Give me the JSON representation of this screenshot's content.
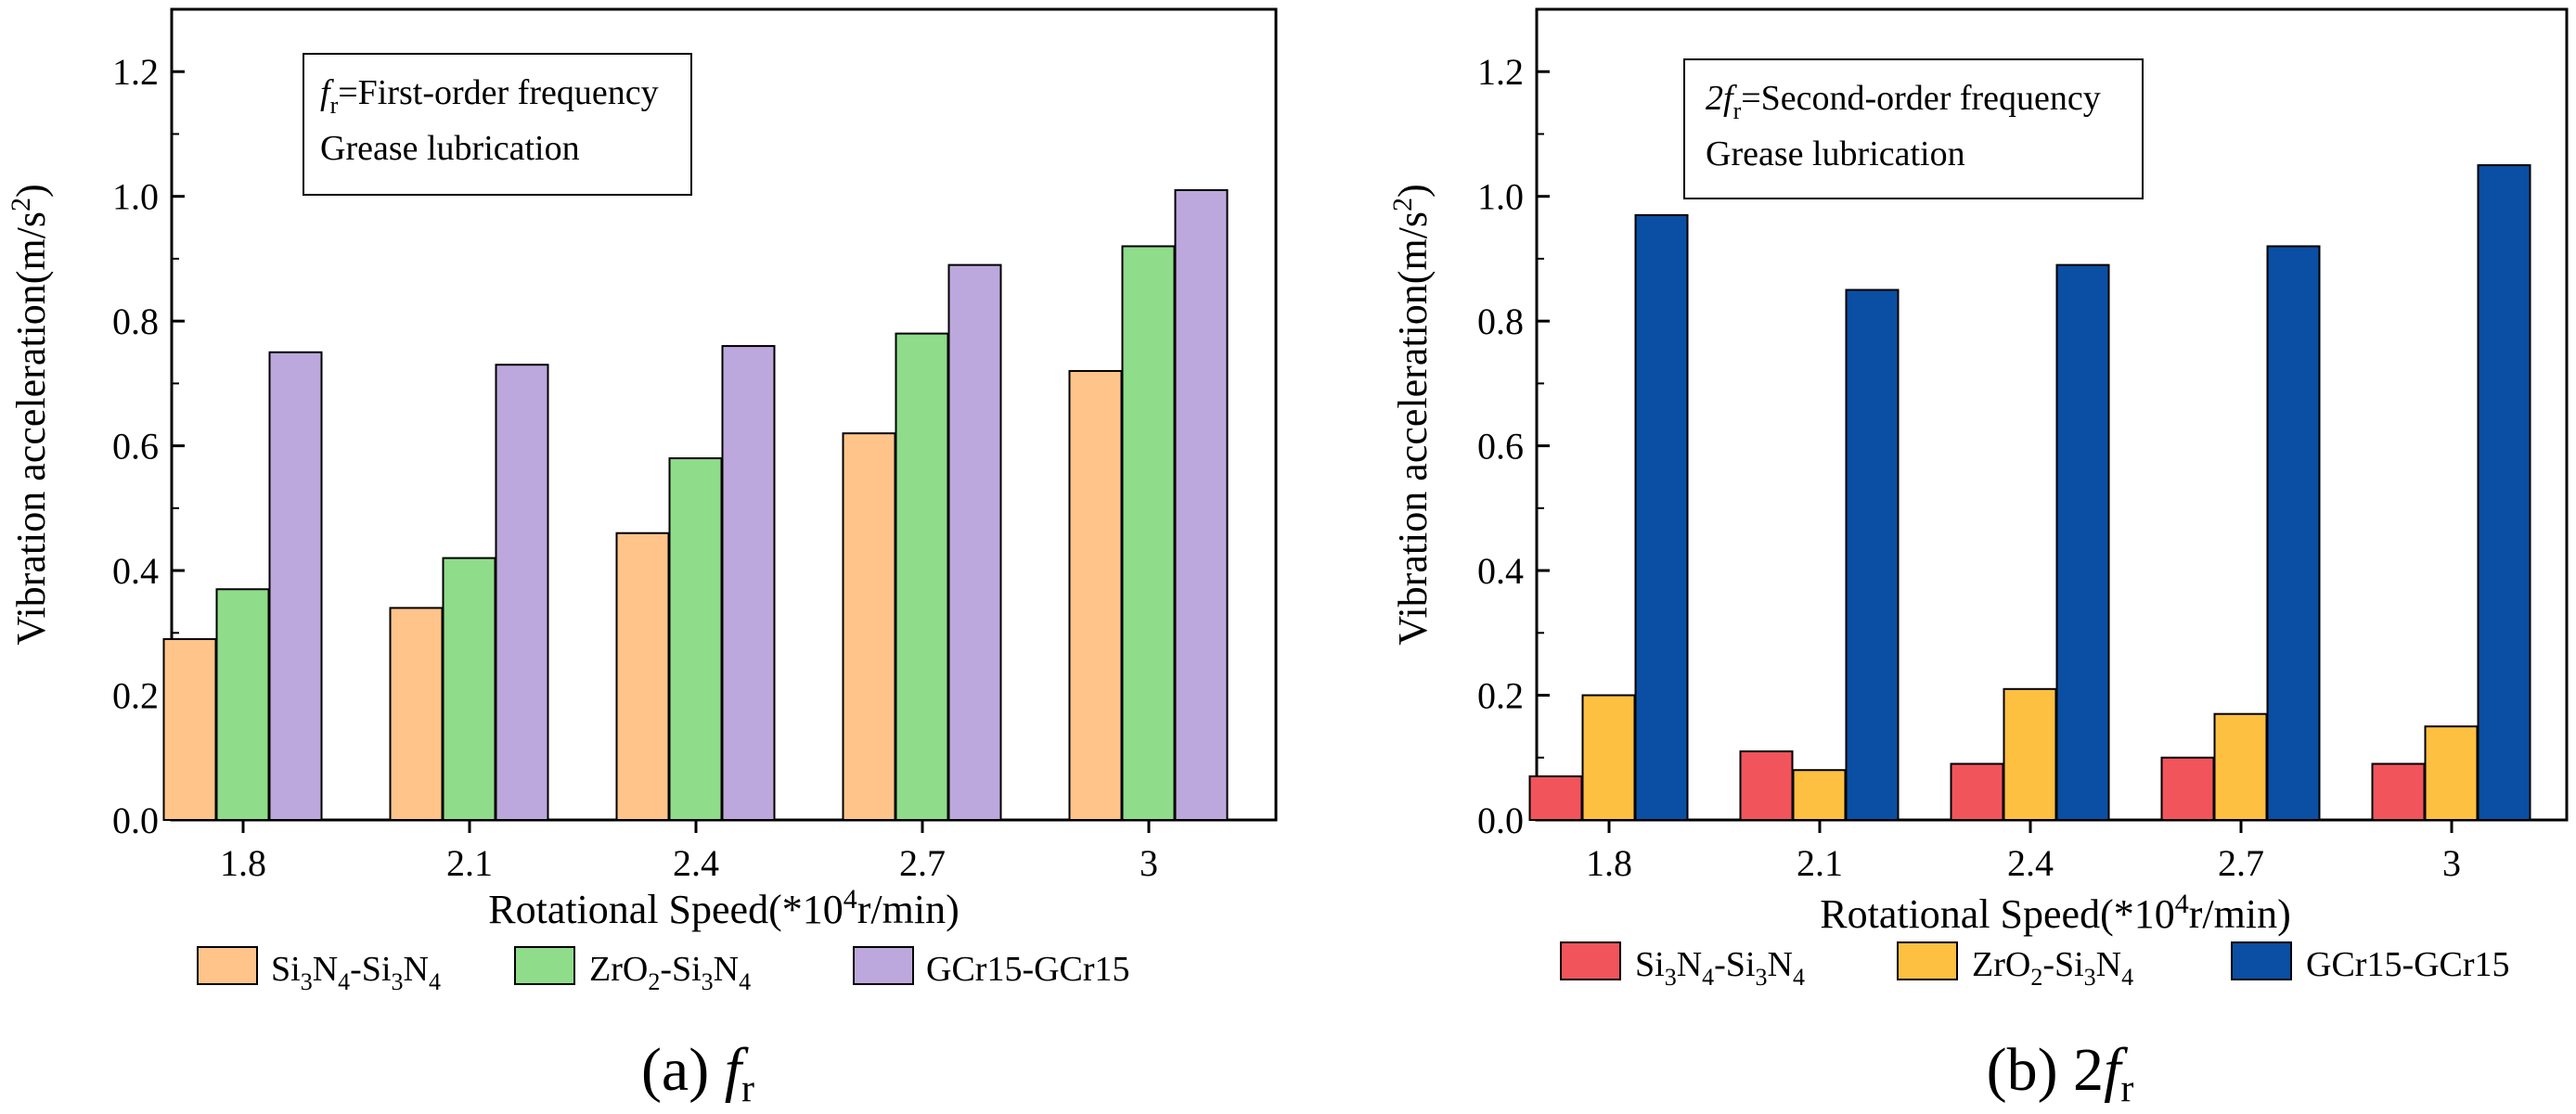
{
  "figure": {
    "panels": [
      {
        "caption": {
          "prefix": "(a) ",
          "main": "f",
          "sub": "r"
        },
        "annotation": {
          "line1": {
            "italic": "f",
            "sub": "r",
            "rest": "=First-order frequency"
          },
          "line2": "Grease lubrication"
        },
        "xlabel": {
          "pre": "Rotational Speed(*10",
          "sup": "4",
          "post": "r/min)"
        },
        "ylabel": {
          "pre": "Vibration acceleration(m/s",
          "sup": "2",
          "post": ")"
        }
      },
      {
        "caption": {
          "prefix": "(b) 2",
          "main": "f",
          "sub": "r"
        },
        "annotation": {
          "line1": {
            "italic": "2f",
            "sub": "r",
            "rest": "=Second-order frequency"
          },
          "line2": "Grease lubrication"
        },
        "xlabel": {
          "pre": "Rotational Speed(*10",
          "sup": "4",
          "post": "r/min)"
        },
        "ylabel": {
          "pre": "Vibration acceleration(m/s",
          "sup": "2",
          "post": ")"
        }
      }
    ]
  },
  "chart_data": [
    {
      "type": "bar",
      "categories": [
        "1.8",
        "2.1",
        "2.4",
        "2.7",
        "3"
      ],
      "series": [
        {
          "name": "Si3N4-Si3N4",
          "values": [
            0.29,
            0.34,
            0.46,
            0.62,
            0.72
          ],
          "color": "#FFC48A"
        },
        {
          "name": "ZrO2-Si3N4",
          "values": [
            0.37,
            0.42,
            0.58,
            0.78,
            0.92
          ],
          "color": "#8FDC8A"
        },
        {
          "name": "GCr15-GCr15",
          "values": [
            0.75,
            0.73,
            0.76,
            0.89,
            1.01
          ],
          "color": "#BCA8DC"
        }
      ],
      "legend_labels": [
        {
          "parts": [
            [
              "Si",
              "n"
            ],
            [
              "3",
              "sub"
            ],
            [
              "N",
              "n"
            ],
            [
              "4",
              "sub"
            ],
            [
              "-Si",
              "n"
            ],
            [
              "3",
              "sub"
            ],
            [
              "N",
              "n"
            ],
            [
              "4",
              "sub"
            ]
          ]
        },
        {
          "parts": [
            [
              "ZrO",
              "n"
            ],
            [
              "2",
              "sub"
            ],
            [
              "-Si",
              "n"
            ],
            [
              "3",
              "sub"
            ],
            [
              "N",
              "n"
            ],
            [
              "4",
              "sub"
            ]
          ]
        },
        {
          "parts": [
            [
              "GCr15-GCr15",
              "n"
            ]
          ]
        }
      ],
      "ylim": [
        0,
        1.3
      ],
      "yticks": [
        "0.0",
        "0.2",
        "0.4",
        "0.6",
        "0.8",
        "1.0",
        "1.2"
      ],
      "legend_position": "bottom"
    },
    {
      "type": "bar",
      "categories": [
        "1.8",
        "2.1",
        "2.4",
        "2.7",
        "3"
      ],
      "series": [
        {
          "name": "Si3N4-Si3N4",
          "values": [
            0.07,
            0.11,
            0.09,
            0.1,
            0.09
          ],
          "color": "#F2545B"
        },
        {
          "name": "ZrO2-Si3N4",
          "values": [
            0.2,
            0.08,
            0.21,
            0.17,
            0.15
          ],
          "color": "#FDC040"
        },
        {
          "name": "GCr15-GCr15",
          "values": [
            0.97,
            0.85,
            0.89,
            0.92,
            1.05
          ],
          "color": "#0A4FA3"
        }
      ],
      "legend_labels": [
        {
          "parts": [
            [
              "Si",
              "n"
            ],
            [
              "3",
              "sub"
            ],
            [
              "N",
              "n"
            ],
            [
              "4",
              "sub"
            ],
            [
              "-Si",
              "n"
            ],
            [
              "3",
              "sub"
            ],
            [
              "N",
              "n"
            ],
            [
              "4",
              "sub"
            ]
          ]
        },
        {
          "parts": [
            [
              "ZrO",
              "n"
            ],
            [
              "2",
              "sub"
            ],
            [
              "-Si",
              "n"
            ],
            [
              "3",
              "sub"
            ],
            [
              "N",
              "n"
            ],
            [
              "4",
              "sub"
            ]
          ]
        },
        {
          "parts": [
            [
              "GCr15-GCr15",
              "n"
            ]
          ]
        }
      ],
      "ylim": [
        0,
        1.3
      ],
      "yticks": [
        "0.0",
        "0.2",
        "0.4",
        "0.6",
        "0.8",
        "1.0",
        "1.2"
      ],
      "legend_position": "bottom"
    }
  ]
}
